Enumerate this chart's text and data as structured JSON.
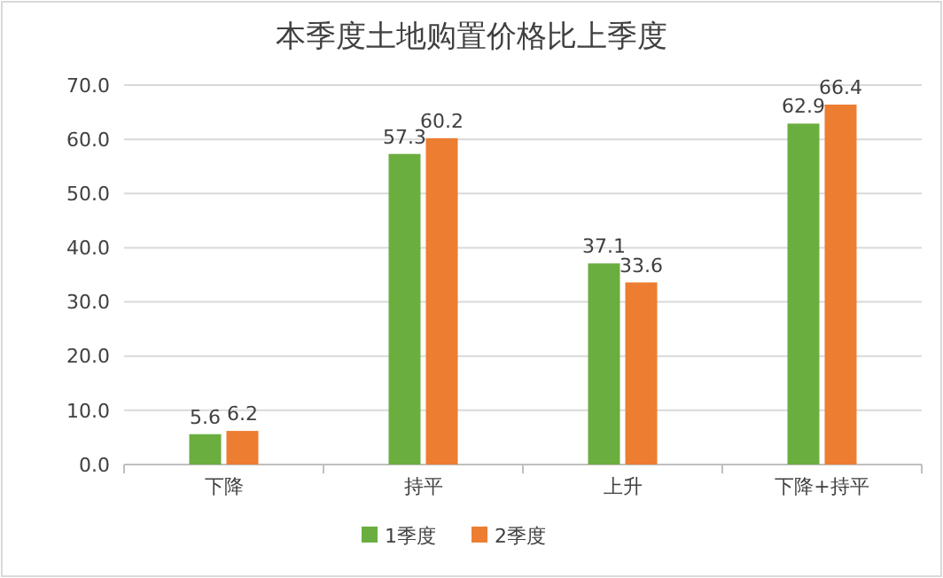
{
  "chart_data": {
    "type": "bar",
    "title": "本季度土地购置价格比上季度",
    "categories": [
      "下降",
      "持平",
      "上升",
      "下降+持平"
    ],
    "series": [
      {
        "name": "1季度",
        "color": "#6aae3f",
        "values": [
          5.6,
          57.3,
          37.1,
          62.9
        ]
      },
      {
        "name": "2季度",
        "color": "#ed7d31",
        "values": [
          6.2,
          60.2,
          33.6,
          66.4
        ]
      }
    ],
    "ylim": [
      0,
      70
    ],
    "yticks": [
      {
        "value": 0,
        "label": "0.0"
      },
      {
        "value": 10,
        "label": "10.0"
      },
      {
        "value": 20,
        "label": "20.0"
      },
      {
        "value": 30,
        "label": "30.0"
      },
      {
        "value": 40,
        "label": "40.0"
      },
      {
        "value": 50,
        "label": "50.0"
      },
      {
        "value": 60,
        "label": "60.0"
      },
      {
        "value": 70,
        "label": "70.0"
      }
    ],
    "grid": "y",
    "legend": "bottom",
    "data_labels": true
  }
}
